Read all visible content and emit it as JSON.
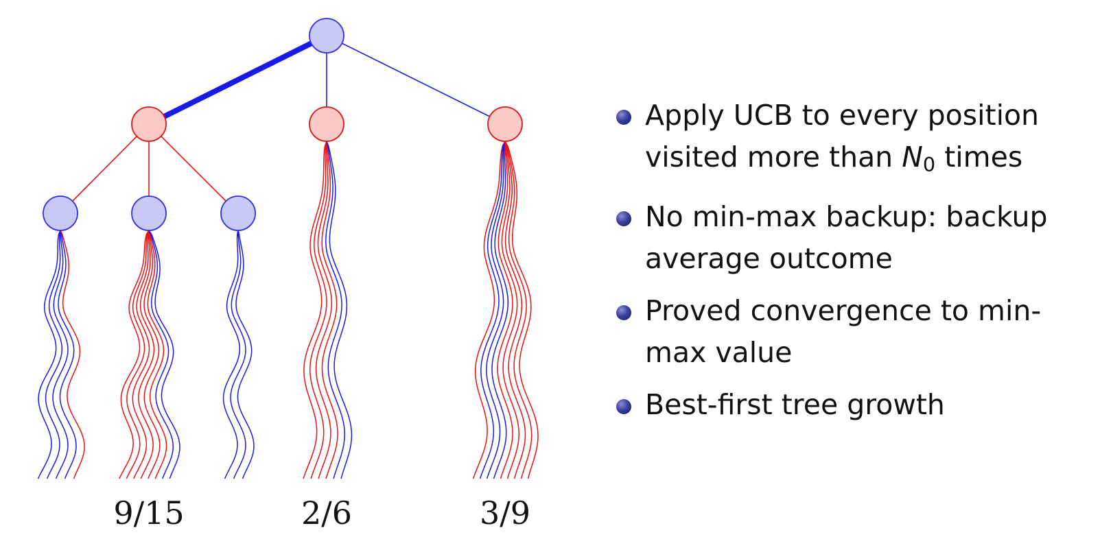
{
  "diagram": {
    "colors": {
      "max_node_fill": "#c9c9f5",
      "max_node_stroke": "#3030e0",
      "min_node_fill": "#fdc8c8",
      "min_node_stroke": "#e01515",
      "blue_edge": "#1a1ae6",
      "red_edge": "#ee1010"
    },
    "scores": [
      "9/15",
      "2/6",
      "3/9"
    ],
    "bundles": [
      {
        "name": "level2-left",
        "counts": {
          "blue": 4,
          "red": 1
        },
        "order": [
          "blue",
          "blue",
          "blue",
          "blue",
          "red"
        ]
      },
      {
        "name": "level2-mid",
        "counts": {
          "blue": 2,
          "red": 6
        },
        "order": [
          "red",
          "red",
          "red",
          "red",
          "red",
          "red",
          "blue",
          "blue"
        ]
      },
      {
        "name": "level2-right",
        "counts": {
          "blue": 3,
          "red": 0
        },
        "order": [
          "blue",
          "blue",
          "blue"
        ]
      },
      {
        "name": "level1-mid",
        "counts": {
          "blue": 2,
          "red": 4
        },
        "order": [
          "red",
          "red",
          "red",
          "red",
          "blue",
          "blue"
        ]
      },
      {
        "name": "level1-right",
        "counts": {
          "blue": 3,
          "red": 6
        },
        "order": [
          "red",
          "blue",
          "blue",
          "blue",
          "red",
          "red",
          "red",
          "red",
          "red"
        ]
      }
    ]
  },
  "bullets": [
    {
      "text": "Apply UCB to every position visited more than ",
      "math_var": "N",
      "math_sub": "0",
      "text_after": " times"
    },
    {
      "text": "No min-max backup: backup average outcome"
    },
    {
      "text": "Proved convergence to min-max value"
    },
    {
      "text": "Best-first tree growth"
    }
  ]
}
